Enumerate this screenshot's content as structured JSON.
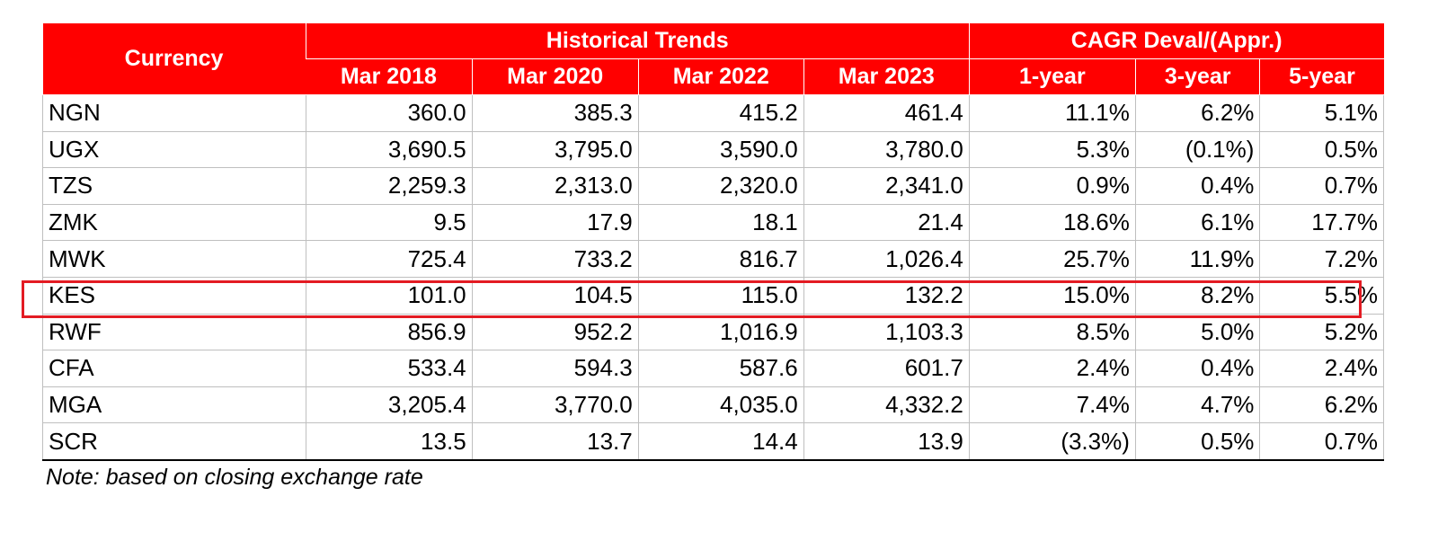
{
  "table": {
    "header": {
      "currency": "Currency",
      "historical": "Historical Trends",
      "cagr": "CAGR Deval/(Appr.)",
      "columns": [
        "Mar 2018",
        "Mar 2020",
        "Mar 2022",
        "Mar 2023",
        "1-year",
        "3-year",
        "5-year"
      ]
    },
    "rows": [
      {
        "currency": "NGN",
        "v": [
          "360.0",
          "385.3",
          "415.2",
          "461.4",
          "11.1%",
          "6.2%",
          "5.1%"
        ]
      },
      {
        "currency": "UGX",
        "v": [
          "3,690.5",
          "3,795.0",
          "3,590.0",
          "3,780.0",
          "5.3%",
          "(0.1%)",
          "0.5%"
        ]
      },
      {
        "currency": "TZS",
        "v": [
          "2,259.3",
          "2,313.0",
          "2,320.0",
          "2,341.0",
          "0.9%",
          "0.4%",
          "0.7%"
        ]
      },
      {
        "currency": "ZMK",
        "v": [
          "9.5",
          "17.9",
          "18.1",
          "21.4",
          "18.6%",
          "6.1%",
          "17.7%"
        ]
      },
      {
        "currency": "MWK",
        "v": [
          "725.4",
          "733.2",
          "816.7",
          "1,026.4",
          "25.7%",
          "11.9%",
          "7.2%"
        ]
      },
      {
        "currency": "KES",
        "v": [
          "101.0",
          "104.5",
          "115.0",
          "132.2",
          "15.0%",
          "8.2%",
          "5.5%"
        ]
      },
      {
        "currency": "RWF",
        "v": [
          "856.9",
          "952.2",
          "1,016.9",
          "1,103.3",
          "8.5%",
          "5.0%",
          "5.2%"
        ]
      },
      {
        "currency": "CFA",
        "v": [
          "533.4",
          "594.3",
          "587.6",
          "601.7",
          "2.4%",
          "0.4%",
          "2.4%"
        ]
      },
      {
        "currency": "MGA",
        "v": [
          "3,205.4",
          "3,770.0",
          "4,035.0",
          "4,332.2",
          "7.4%",
          "4.7%",
          "6.2%"
        ]
      },
      {
        "currency": "SCR",
        "v": [
          "13.5",
          "13.7",
          "14.4",
          "13.9",
          "(3.3%)",
          "0.5%",
          "0.7%"
        ]
      }
    ]
  },
  "note": "Note: based on closing exchange rate",
  "colors": {
    "header_bg": "#ff0000",
    "highlight_border": "#e31b23"
  },
  "highlighted_row": "KES"
}
